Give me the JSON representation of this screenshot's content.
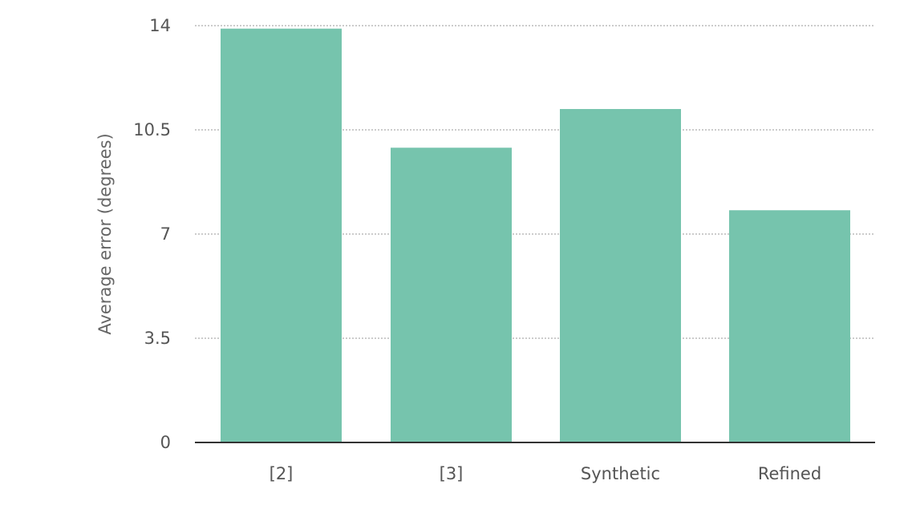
{
  "chart_data": {
    "type": "bar",
    "categories": [
      "[2]",
      "[3]",
      "Synthetic",
      "Refined"
    ],
    "values": [
      13.9,
      9.9,
      11.2,
      7.8
    ],
    "title": "",
    "xlabel": "",
    "ylabel": "Average error (degrees)",
    "ylim": [
      0,
      14
    ],
    "yticks": [
      0,
      3.5,
      7,
      10.5,
      14
    ],
    "ytick_labels": [
      "0",
      "3.5",
      "7",
      "10.5",
      "14"
    ],
    "grid": "horizontal dotted",
    "legend": "none",
    "bar_color": "#76c4ad"
  }
}
